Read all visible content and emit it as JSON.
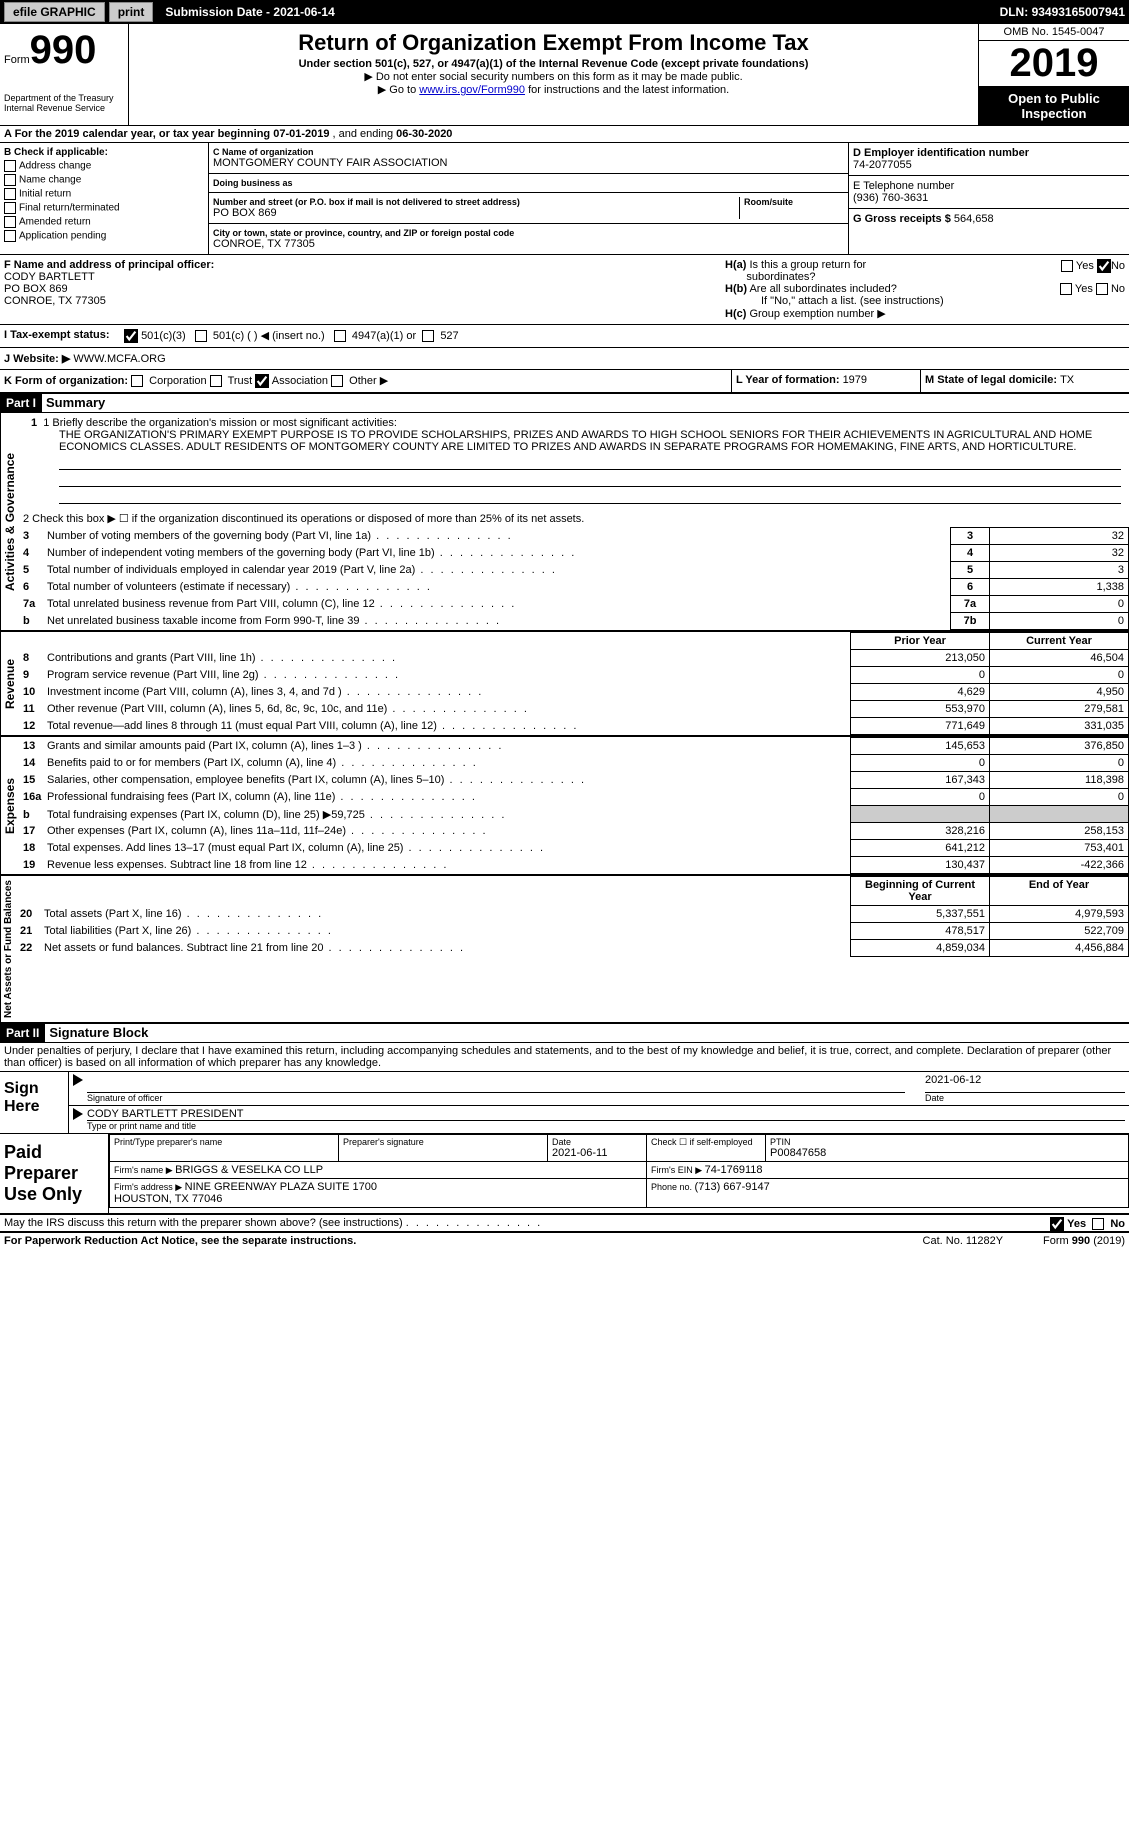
{
  "topbar": {
    "efile": "efile GRAPHIC",
    "print": "print",
    "submission_label": "Submission Date - ",
    "submission_date": "2021-06-14",
    "dln_label": "DLN: ",
    "dln": "93493165007941"
  },
  "header": {
    "form_word": "Form",
    "form_num": "990",
    "title": "Return of Organization Exempt From Income Tax",
    "subtitle": "Under section 501(c), 527, or 4947(a)(1) of the Internal Revenue Code (except private foundations)",
    "note1": "▶ Do not enter social security numbers on this form as it may be made public.",
    "note2_pre": "▶ Go to ",
    "note2_link": "www.irs.gov/Form990",
    "note2_post": " for instructions and the latest information.",
    "omb": "OMB No. 1545-0047",
    "year": "2019",
    "open": "Open to Public Inspection",
    "dept": "Department of the Treasury\nInternal Revenue Service"
  },
  "line_a": {
    "text_pre": "A For the 2019 calendar year, or tax year beginning ",
    "begin": "07-01-2019",
    "text_mid": " , and ending ",
    "end": "06-30-2020"
  },
  "section_b": {
    "label": "B Check if applicable:",
    "items": [
      "Address change",
      "Name change",
      "Initial return",
      "Final return/terminated",
      "Amended return",
      "Application pending"
    ]
  },
  "section_c": {
    "name_label": "C Name of organization",
    "name": "MONTGOMERY COUNTY FAIR ASSOCIATION",
    "dba_label": "Doing business as",
    "dba": "",
    "addr_label": "Number and street (or P.O. box if mail is not delivered to street address)",
    "room_label": "Room/suite",
    "addr": "PO BOX 869",
    "city_label": "City or town, state or province, country, and ZIP or foreign postal code",
    "city": "CONROE, TX  77305"
  },
  "section_d": {
    "label": "D Employer identification number",
    "ein": "74-2077055",
    "phone_label": "E Telephone number",
    "phone": "(936) 760-3631",
    "gross_label": "G Gross receipts $ ",
    "gross": "564,658"
  },
  "section_f": {
    "label": "F Name and address of principal officer:",
    "name": "CODY BARTLETT",
    "addr1": "PO BOX 869",
    "addr2": "CONROE, TX  77305"
  },
  "section_h": {
    "ha": "H(a)  Is this a group return for subordinates?",
    "hb": "H(b)  Are all subordinates included?",
    "hb_note": "If \"No,\" attach a list. (see instructions)",
    "hc": "H(c)  Group exemption number ▶"
  },
  "tax_status": {
    "label": "I  Tax-exempt status:",
    "opt1": "501(c)(3)",
    "opt2": "501(c) (  ) ◀ (insert no.)",
    "opt3": "4947(a)(1) or",
    "opt4": "527"
  },
  "website": {
    "label": "J  Website: ▶ ",
    "value": "WWW.MCFA.ORG"
  },
  "line_k": {
    "label": "K Form of organization:",
    "opts": [
      "Corporation",
      "Trust",
      "Association",
      "Other ▶"
    ],
    "l_label": "L Year of formation: ",
    "l_val": "1979",
    "m_label": "M State of legal domicile: ",
    "m_val": "TX"
  },
  "part1": {
    "num": "Part I",
    "title": "Summary",
    "mission_label": "1  Briefly describe the organization's mission or most significant activities:",
    "mission": "THE ORGANIZATION'S PRIMARY EXEMPT PURPOSE IS TO PROVIDE SCHOLARSHIPS, PRIZES AND AWARDS TO HIGH SCHOOL SENIORS FOR THEIR ACHIEVEMENTS IN AGRICULTURAL AND HOME ECONOMICS CLASSES. ADULT RESIDENTS OF MONTGOMERY COUNTY ARE LIMITED TO PRIZES AND AWARDS IN SEPARATE PROGRAMS FOR HOMEMAKING, FINE ARTS, AND HORTICULTURE.",
    "line2": "2  Check this box ▶ ☐  if the organization discontinued its operations or disposed of more than 25% of its net assets.",
    "gov_rows": [
      {
        "n": "3",
        "label": "Number of voting members of the governing body (Part VI, line 1a)",
        "box": "3",
        "val": "32"
      },
      {
        "n": "4",
        "label": "Number of independent voting members of the governing body (Part VI, line 1b)",
        "box": "4",
        "val": "32"
      },
      {
        "n": "5",
        "label": "Total number of individuals employed in calendar year 2019 (Part V, line 2a)",
        "box": "5",
        "val": "3"
      },
      {
        "n": "6",
        "label": "Total number of volunteers (estimate if necessary)",
        "box": "6",
        "val": "1,338"
      },
      {
        "n": "7a",
        "label": "Total unrelated business revenue from Part VIII, column (C), line 12",
        "box": "7a",
        "val": "0"
      },
      {
        "n": "b",
        "label": "Net unrelated business taxable income from Form 990-T, line 39",
        "box": "7b",
        "val": "0"
      }
    ],
    "rev_hdr_prior": "Prior Year",
    "rev_hdr_curr": "Current Year",
    "rev_rows": [
      {
        "n": "8",
        "label": "Contributions and grants (Part VIII, line 1h)",
        "p": "213,050",
        "c": "46,504"
      },
      {
        "n": "9",
        "label": "Program service revenue (Part VIII, line 2g)",
        "p": "0",
        "c": "0"
      },
      {
        "n": "10",
        "label": "Investment income (Part VIII, column (A), lines 3, 4, and 7d )",
        "p": "4,629",
        "c": "4,950"
      },
      {
        "n": "11",
        "label": "Other revenue (Part VIII, column (A), lines 5, 6d, 8c, 9c, 10c, and 11e)",
        "p": "553,970",
        "c": "279,581"
      },
      {
        "n": "12",
        "label": "Total revenue—add lines 8 through 11 (must equal Part VIII, column (A), line 12)",
        "p": "771,649",
        "c": "331,035"
      }
    ],
    "exp_rows": [
      {
        "n": "13",
        "label": "Grants and similar amounts paid (Part IX, column (A), lines 1–3 )",
        "p": "145,653",
        "c": "376,850"
      },
      {
        "n": "14",
        "label": "Benefits paid to or for members (Part IX, column (A), line 4)",
        "p": "0",
        "c": "0"
      },
      {
        "n": "15",
        "label": "Salaries, other compensation, employee benefits (Part IX, column (A), lines 5–10)",
        "p": "167,343",
        "c": "118,398"
      },
      {
        "n": "16a",
        "label": "Professional fundraising fees (Part IX, column (A), line 11e)",
        "p": "0",
        "c": "0"
      },
      {
        "n": "b",
        "label": "Total fundraising expenses (Part IX, column (D), line 25) ▶59,725",
        "p": "shade",
        "c": "shade"
      },
      {
        "n": "17",
        "label": "Other expenses (Part IX, column (A), lines 11a–11d, 11f–24e)",
        "p": "328,216",
        "c": "258,153"
      },
      {
        "n": "18",
        "label": "Total expenses. Add lines 13–17 (must equal Part IX, column (A), line 25)",
        "p": "641,212",
        "c": "753,401"
      },
      {
        "n": "19",
        "label": "Revenue less expenses. Subtract line 18 from line 12",
        "p": "130,437",
        "c": "-422,366"
      }
    ],
    "na_hdr_begin": "Beginning of Current Year",
    "na_hdr_end": "End of Year",
    "na_rows": [
      {
        "n": "20",
        "label": "Total assets (Part X, line 16)",
        "p": "5,337,551",
        "c": "4,979,593"
      },
      {
        "n": "21",
        "label": "Total liabilities (Part X, line 26)",
        "p": "478,517",
        "c": "522,709"
      },
      {
        "n": "22",
        "label": "Net assets or fund balances. Subtract line 21 from line 20",
        "p": "4,859,034",
        "c": "4,456,884"
      }
    ],
    "vtab_gov": "Activities & Governance",
    "vtab_rev": "Revenue",
    "vtab_exp": "Expenses",
    "vtab_na": "Net Assets or\nFund Balances"
  },
  "part2": {
    "num": "Part II",
    "title": "Signature Block",
    "decl": "Under penalties of perjury, I declare that I have examined this return, including accompanying schedules and statements, and to the best of my knowledge and belief, it is true, correct, and complete. Declaration of preparer (other than officer) is based on all information of which preparer has any knowledge.",
    "sign_here": "Sign Here",
    "sig_officer": "Signature of officer",
    "sig_date": "Date",
    "sig_date_val": "2021-06-12",
    "sig_name": "CODY BARTLETT  PRESIDENT",
    "sig_name_label": "Type or print name and title",
    "paid": "Paid Preparer Use Only",
    "prep_name_label": "Print/Type preparer's name",
    "prep_sig_label": "Preparer's signature",
    "prep_date_label": "Date",
    "prep_date": "2021-06-11",
    "prep_check": "Check ☐ if self-employed",
    "ptin_label": "PTIN",
    "ptin": "P00847658",
    "firm_name_label": "Firm's name    ▶ ",
    "firm_name": "BRIGGS & VESELKA CO LLP",
    "firm_ein_label": "Firm's EIN ▶ ",
    "firm_ein": "74-1769118",
    "firm_addr_label": "Firm's address ▶ ",
    "firm_addr": "NINE GREENWAY PLAZA SUITE 1700\nHOUSTON, TX  77046",
    "firm_phone_label": "Phone no. ",
    "firm_phone": "(713) 667-9147",
    "discuss": "May the IRS discuss this return with the preparer shown above? (see instructions)",
    "yes": "Yes",
    "no": "No"
  },
  "footer": {
    "pra": "For Paperwork Reduction Act Notice, see the separate instructions.",
    "cat": "Cat. No. 11282Y",
    "form": "Form 990 (2019)"
  }
}
